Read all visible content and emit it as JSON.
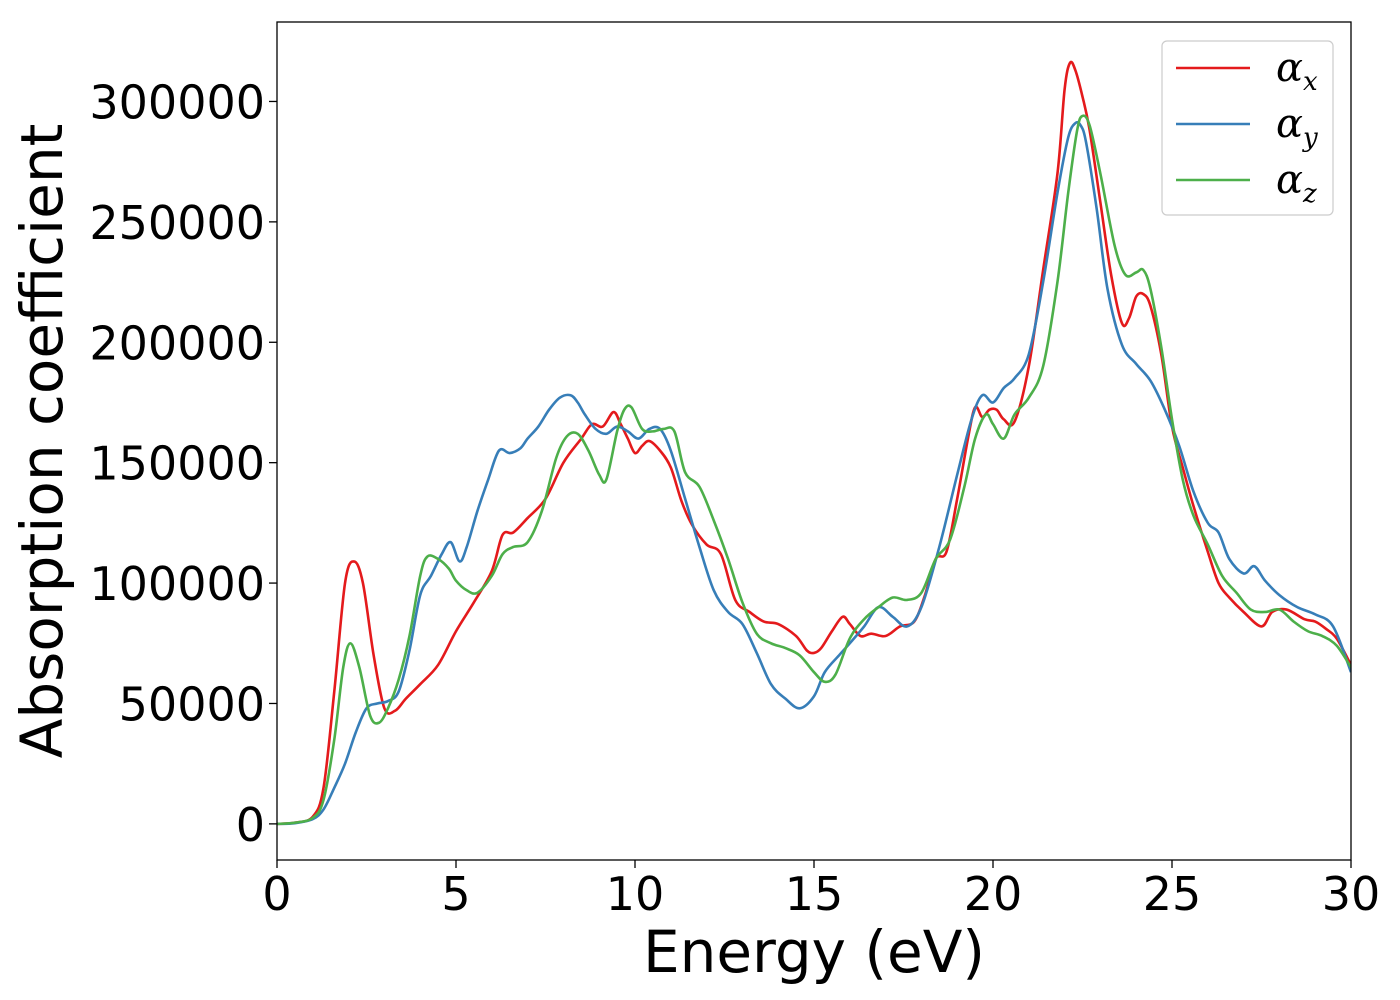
{
  "chart_data": {
    "type": "line",
    "xlabel": "Energy (eV)",
    "ylabel": "Absorption coefficient",
    "xlim": [
      0,
      30
    ],
    "ylim": [
      -15000,
      333000
    ],
    "xticks": [
      0,
      5,
      10,
      15,
      20,
      25,
      30
    ],
    "xtick_labels": [
      "0",
      "5",
      "10",
      "15",
      "20",
      "25",
      "30"
    ],
    "yticks": [
      0,
      50000,
      100000,
      150000,
      200000,
      250000,
      300000
    ],
    "ytick_labels": [
      "0",
      "50000",
      "100000",
      "150000",
      "200000",
      "250000",
      "300000"
    ],
    "grid": false,
    "legend_position": "top-right",
    "series": [
      {
        "name": "α",
        "subscript": "x",
        "color": "#e41a1c",
        "x": [
          0,
          0.5,
          1.0,
          1.3,
          1.6,
          1.9,
          2.15,
          2.4,
          2.7,
          3.0,
          3.3,
          3.6,
          4.0,
          4.5,
          5.0,
          5.5,
          6.0,
          6.3,
          6.6,
          7.0,
          7.5,
          8.0,
          8.5,
          8.8,
          9.1,
          9.4,
          9.6,
          9.8,
          10.0,
          10.2,
          10.4,
          10.7,
          11.0,
          11.3,
          11.6,
          12.0,
          12.4,
          12.8,
          13.2,
          13.6,
          14.0,
          14.5,
          14.8,
          15.0,
          15.2,
          15.5,
          15.8,
          16.0,
          16.3,
          16.6,
          17.0,
          17.4,
          17.8,
          18.1,
          18.4,
          18.7,
          19.0,
          19.3,
          19.5,
          19.7,
          19.9,
          20.1,
          20.3,
          20.6,
          21.0,
          21.4,
          21.8,
          22.0,
          22.15,
          22.3,
          22.5,
          22.7,
          23.0,
          23.3,
          23.6,
          23.8,
          24.0,
          24.2,
          24.4,
          24.7,
          25.0,
          25.3,
          25.6,
          26.0,
          26.3,
          26.6,
          27.0,
          27.5,
          27.8,
          28.2,
          28.7,
          29.0,
          29.3,
          29.6,
          30.0
        ],
        "y": [
          0,
          500,
          3000,
          15000,
          55000,
          100000,
          109000,
          100000,
          70000,
          48000,
          47000,
          52000,
          58000,
          66000,
          80000,
          92000,
          105000,
          120000,
          121000,
          127000,
          135000,
          150000,
          160000,
          166000,
          165000,
          171000,
          166000,
          160000,
          154000,
          157000,
          159000,
          155000,
          148000,
          134000,
          124000,
          116000,
          112000,
          93000,
          88000,
          84000,
          83000,
          78000,
          72000,
          71000,
          73000,
          80000,
          86000,
          83000,
          78000,
          79000,
          78000,
          82000,
          84000,
          95000,
          110000,
          113000,
          135000,
          160000,
          173000,
          169000,
          172000,
          172000,
          168000,
          167000,
          190000,
          230000,
          270000,
          305000,
          316000,
          313000,
          302000,
          288000,
          258000,
          228000,
          208000,
          210000,
          219000,
          220000,
          215000,
          195000,
          165000,
          148000,
          132000,
          113000,
          100000,
          94000,
          88000,
          82000,
          88000,
          89000,
          85000,
          84000,
          81000,
          77000,
          66000
        ]
      },
      {
        "name": "α",
        "subscript": "y",
        "color": "#377eb8",
        "x": [
          0,
          0.5,
          1.0,
          1.3,
          1.6,
          1.9,
          2.2,
          2.5,
          2.8,
          3.1,
          3.4,
          3.7,
          4.0,
          4.3,
          4.6,
          4.85,
          5.1,
          5.3,
          5.6,
          5.9,
          6.2,
          6.5,
          6.8,
          7.0,
          7.3,
          7.6,
          7.9,
          8.2,
          8.4,
          8.6,
          8.9,
          9.2,
          9.5,
          9.8,
          10.1,
          10.4,
          10.7,
          11.0,
          11.4,
          11.8,
          12.2,
          12.6,
          13.0,
          13.4,
          13.8,
          14.2,
          14.6,
          15.0,
          15.3,
          15.7,
          16.0,
          16.4,
          16.8,
          17.2,
          17.6,
          18.0,
          18.5,
          19.0,
          19.4,
          19.7,
          20.0,
          20.3,
          20.6,
          21.0,
          21.4,
          21.8,
          22.1,
          22.3,
          22.45,
          22.6,
          22.9,
          23.2,
          23.6,
          24.0,
          24.4,
          24.8,
          25.2,
          25.6,
          26.0,
          26.3,
          26.6,
          27.0,
          27.3,
          27.6,
          28.0,
          28.5,
          29.0,
          29.5,
          30.0
        ],
        "y": [
          0,
          300,
          2000,
          6000,
          15000,
          25000,
          38000,
          48000,
          50000,
          51000,
          55000,
          72000,
          95000,
          103000,
          112000,
          117000,
          109000,
          115000,
          130000,
          143000,
          155000,
          154000,
          156000,
          160000,
          165000,
          172000,
          177000,
          178000,
          175000,
          170000,
          164000,
          162000,
          165000,
          163000,
          160000,
          164000,
          164000,
          155000,
          135000,
          115000,
          97000,
          88000,
          83000,
          71000,
          58000,
          52000,
          48000,
          53000,
          63000,
          70000,
          75000,
          82000,
          90000,
          86000,
          82000,
          90000,
          115000,
          145000,
          168000,
          178000,
          175000,
          181000,
          185000,
          195000,
          225000,
          262000,
          285000,
          291000,
          290000,
          283000,
          255000,
          222000,
          199000,
          191000,
          184000,
          172000,
          157000,
          138000,
          125000,
          121000,
          110000,
          104000,
          107000,
          101000,
          95000,
          90000,
          87000,
          82000,
          63000
        ]
      },
      {
        "name": "α",
        "subscript": "z",
        "color": "#4daf4a",
        "x": [
          0,
          0.5,
          1.0,
          1.3,
          1.6,
          1.85,
          2.05,
          2.3,
          2.6,
          2.85,
          3.1,
          3.4,
          3.7,
          4.0,
          4.2,
          4.5,
          4.8,
          5.0,
          5.3,
          5.6,
          6.0,
          6.3,
          6.6,
          7.0,
          7.4,
          7.8,
          8.1,
          8.4,
          8.7,
          9.0,
          9.2,
          9.5,
          9.7,
          9.9,
          10.2,
          10.5,
          10.8,
          11.1,
          11.4,
          11.8,
          12.2,
          12.6,
          13.0,
          13.4,
          13.8,
          14.2,
          14.6,
          15.0,
          15.3,
          15.6,
          16.0,
          16.4,
          16.8,
          17.2,
          17.6,
          18.0,
          18.4,
          18.8,
          19.2,
          19.5,
          19.8,
          20.0,
          20.3,
          20.6,
          21.0,
          21.4,
          21.8,
          22.1,
          22.35,
          22.5,
          22.7,
          23.0,
          23.4,
          23.7,
          24.0,
          24.2,
          24.4,
          24.7,
          25.0,
          25.3,
          25.6,
          26.0,
          26.4,
          26.8,
          27.2,
          27.6,
          28.0,
          28.4,
          28.8,
          29.2,
          29.6,
          30.0
        ],
        "y": [
          0,
          500,
          2500,
          10000,
          35000,
          65000,
          75000,
          65000,
          45000,
          42000,
          48000,
          60000,
          78000,
          103000,
          111000,
          110000,
          106000,
          101000,
          97000,
          96000,
          103000,
          112000,
          115000,
          117000,
          130000,
          152000,
          161000,
          162000,
          155000,
          145000,
          143000,
          163000,
          172000,
          173000,
          164000,
          163000,
          164000,
          163000,
          146000,
          140000,
          126000,
          110000,
          92000,
          79000,
          75000,
          73000,
          70000,
          63000,
          59000,
          62000,
          77000,
          85000,
          90000,
          94000,
          93000,
          96000,
          110000,
          118000,
          140000,
          160000,
          170000,
          166000,
          160000,
          170000,
          177000,
          190000,
          225000,
          262000,
          288000,
          294000,
          290000,
          270000,
          240000,
          228000,
          229000,
          230000,
          222000,
          198000,
          168000,
          143000,
          128000,
          116000,
          103000,
          96000,
          89000,
          88000,
          89000,
          84000,
          80000,
          78000,
          74000,
          65000
        ]
      }
    ]
  }
}
